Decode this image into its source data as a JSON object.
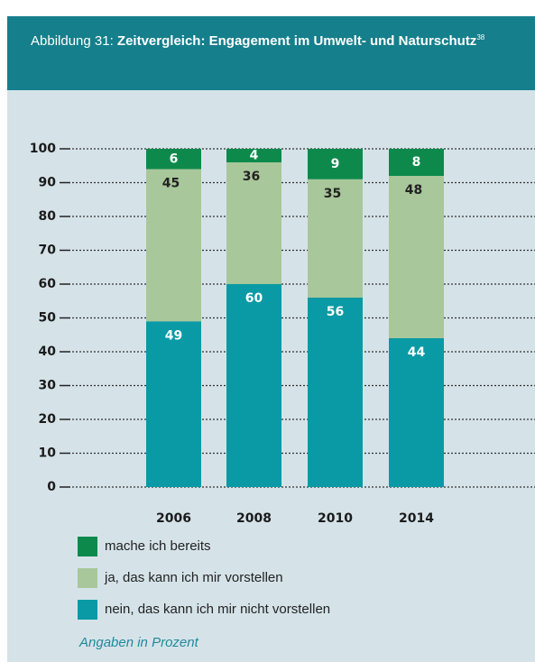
{
  "chart_data": {
    "type": "stacked-bar",
    "figure_label": "Abbildung 31:",
    "title": "Zeitvergleich: Engagement im Umwelt- und Naturschutz",
    "title_footnote": "38",
    "categories": [
      "2006",
      "2008",
      "2010",
      "2014"
    ],
    "series": [
      {
        "name": "mache ich bereits",
        "color": "#0d8a4b",
        "values": [
          6,
          4,
          9,
          8
        ]
      },
      {
        "name": "ja, das kann ich mir vorstellen",
        "color": "#a8c79a",
        "values": [
          45,
          36,
          35,
          48
        ]
      },
      {
        "name": "nein, das kann ich mir nicht vorstellen",
        "color": "#0a9aa6",
        "values": [
          49,
          60,
          56,
          44
        ]
      }
    ],
    "ylim": [
      0,
      100
    ],
    "yticks": [
      0,
      10,
      20,
      30,
      40,
      50,
      60,
      70,
      80,
      90,
      100
    ],
    "grid": true,
    "note": "Angaben in Prozent"
  }
}
